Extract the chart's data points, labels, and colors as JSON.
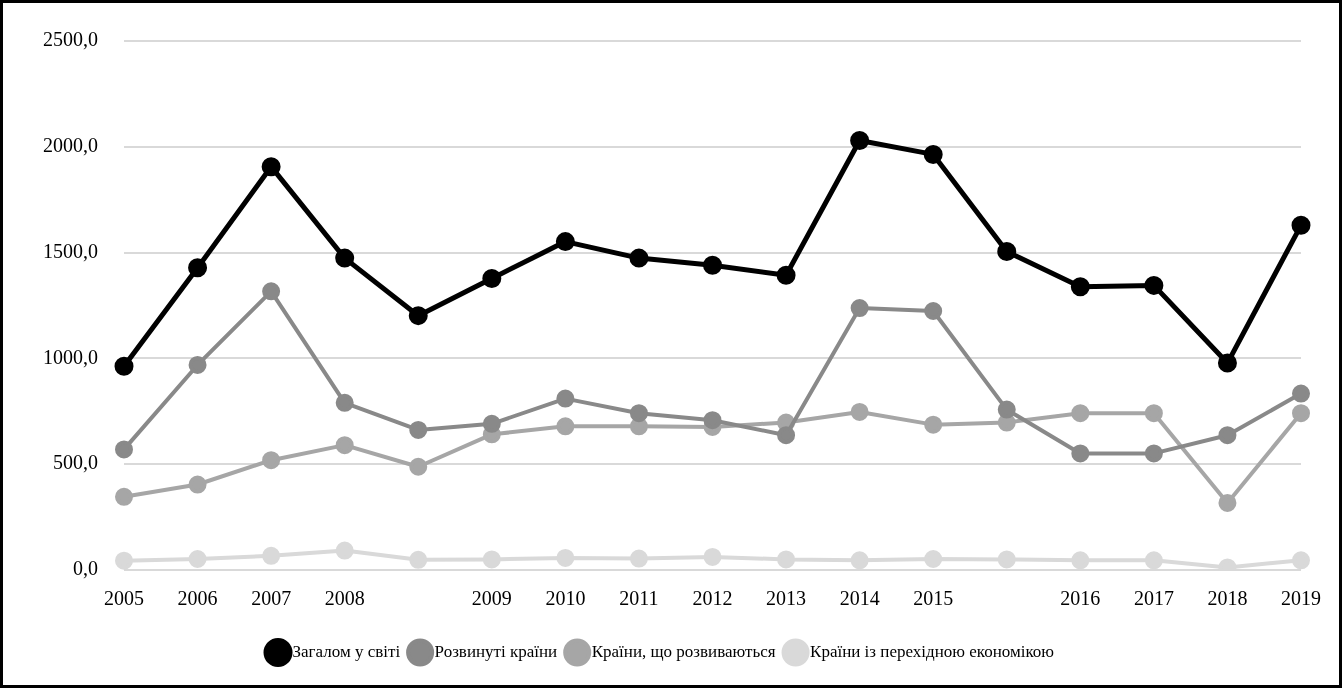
{
  "chart_data": {
    "type": "line",
    "categories": [
      "2005",
      "2006",
      "2007",
      "2008",
      null,
      "2009",
      "2010",
      "2011",
      "2012",
      "2013",
      "2014",
      "2015",
      null,
      "2016",
      "2017",
      "2018",
      "2019"
    ],
    "series": [
      {
        "name": "Загалом у світі",
        "color": "#000000",
        "values": [
          963,
          1428,
          1906,
          1474,
          1202,
          1378,
          1552,
          1474,
          1440,
          1393,
          2030,
          1964,
          1505,
          1339,
          1345,
          978,
          1629
        ]
      },
      {
        "name": "Розвинуті країни",
        "color": "#898989",
        "values": [
          570,
          969,
          1317,
          790,
          662,
          691,
          810,
          741,
          708,
          637,
          1238,
          1224,
          758,
          551,
          551,
          637,
          834
        ]
      },
      {
        "name": "Країни, що розвиваються",
        "color": "#a6a6a6",
        "values": [
          346,
          404,
          519,
          590,
          488,
          641,
          679,
          679,
          676,
          697,
          747,
          687,
          697,
          741,
          741,
          317,
          741
        ]
      },
      {
        "name": "Країни із перехідною економікою",
        "color": "#d9d9d9",
        "values": [
          44,
          52,
          67,
          92,
          48,
          50,
          57,
          54,
          62,
          50,
          46,
          52,
          50,
          46,
          46,
          12,
          46
        ]
      }
    ],
    "ylim": [
      0,
      2500
    ],
    "yticks": [
      {
        "value": 0,
        "label": "0,0"
      },
      {
        "value": 500,
        "label": "500,0"
      },
      {
        "value": 1000,
        "label": "1000,0"
      },
      {
        "value": 1500,
        "label": "1500,0"
      },
      {
        "value": 2000,
        "label": "2000,0"
      },
      {
        "value": 2500,
        "label": "2500,0"
      }
    ],
    "grid": "y",
    "legend": "bottom",
    "marker": "circle",
    "line_style": "solid"
  }
}
